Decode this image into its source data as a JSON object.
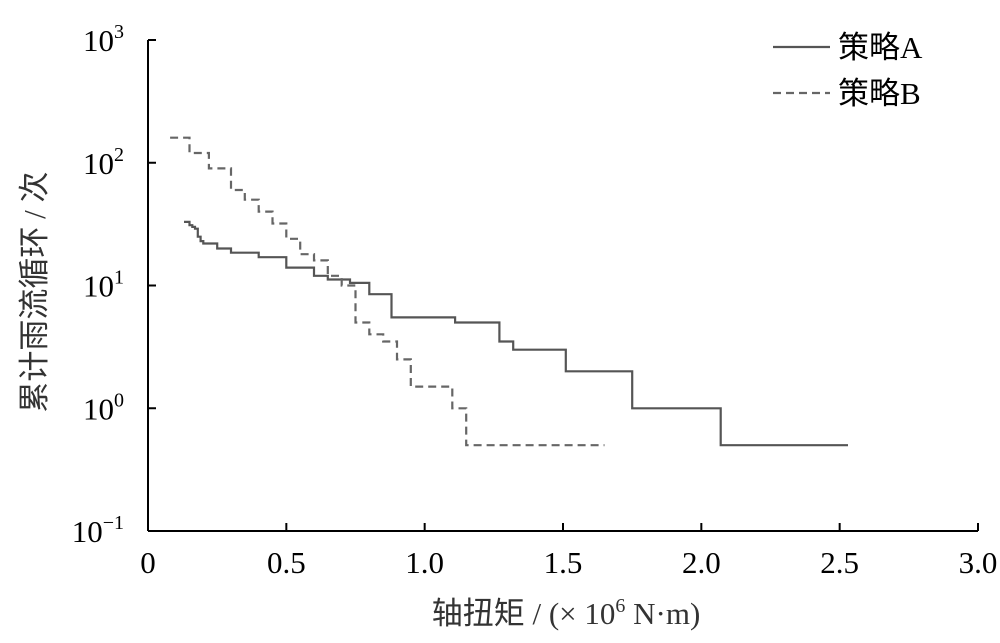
{
  "chart_data": {
    "type": "line",
    "ylog": true,
    "xlim": [
      0,
      3.0
    ],
    "ylim": [
      0.1,
      1000
    ],
    "xticks": [
      "0",
      "0.5",
      "1.0",
      "1.5",
      "2.0",
      "2.5",
      "3.0"
    ],
    "xtick_values": [
      0,
      0.5,
      1.0,
      1.5,
      2.0,
      2.5,
      3.0
    ],
    "ytick_values": [
      0.1,
      1,
      10,
      100,
      1000
    ],
    "yticks": [
      {
        "base": "10",
        "exp": "−1"
      },
      {
        "base": "10",
        "exp": "0"
      },
      {
        "base": "10",
        "exp": "1"
      },
      {
        "base": "10",
        "exp": "2"
      },
      {
        "base": "10",
        "exp": "3"
      }
    ],
    "xlabel": {
      "main": "轴扭矩 / (× 10",
      "exp": "6",
      "tail": " N·m)"
    },
    "ylabel": "累计雨流循环 / 次",
    "legend_position": "top-right",
    "colors": {
      "series_a": "#555555",
      "series_b": "#666666",
      "axis": "#000000"
    },
    "series": [
      {
        "name": "策略A",
        "style": "solid",
        "x": [
          0.13,
          0.15,
          0.16,
          0.17,
          0.18,
          0.19,
          0.2,
          0.25,
          0.3,
          0.4,
          0.5,
          0.5,
          0.6,
          0.65,
          0.73,
          0.8,
          0.8,
          0.88,
          1.11,
          1.27,
          1.27,
          1.32,
          1.51,
          1.75,
          2.07,
          2.53
        ],
        "y": [
          33,
          31,
          30,
          29,
          25,
          23,
          22,
          20,
          18.5,
          17,
          15.5,
          14,
          12,
          11.2,
          10.5,
          10,
          8.5,
          5.5,
          5,
          4,
          3.5,
          3,
          2,
          1,
          0.5,
          0.5
        ]
      },
      {
        "name": "策略B",
        "style": "dashed",
        "x": [
          0.08,
          0.15,
          0.22,
          0.3,
          0.35,
          0.4,
          0.45,
          0.5,
          0.55,
          0.6,
          0.65,
          0.7,
          0.75,
          0.8,
          0.85,
          0.9,
          0.95,
          1.05,
          1.1,
          1.15,
          1.65
        ],
        "y": [
          160,
          120,
          90,
          60,
          50,
          40,
          32,
          24,
          18,
          16,
          12,
          10,
          5,
          4,
          3.5,
          2.5,
          1.5,
          1.5,
          1,
          0.5,
          0.5
        ]
      }
    ]
  }
}
